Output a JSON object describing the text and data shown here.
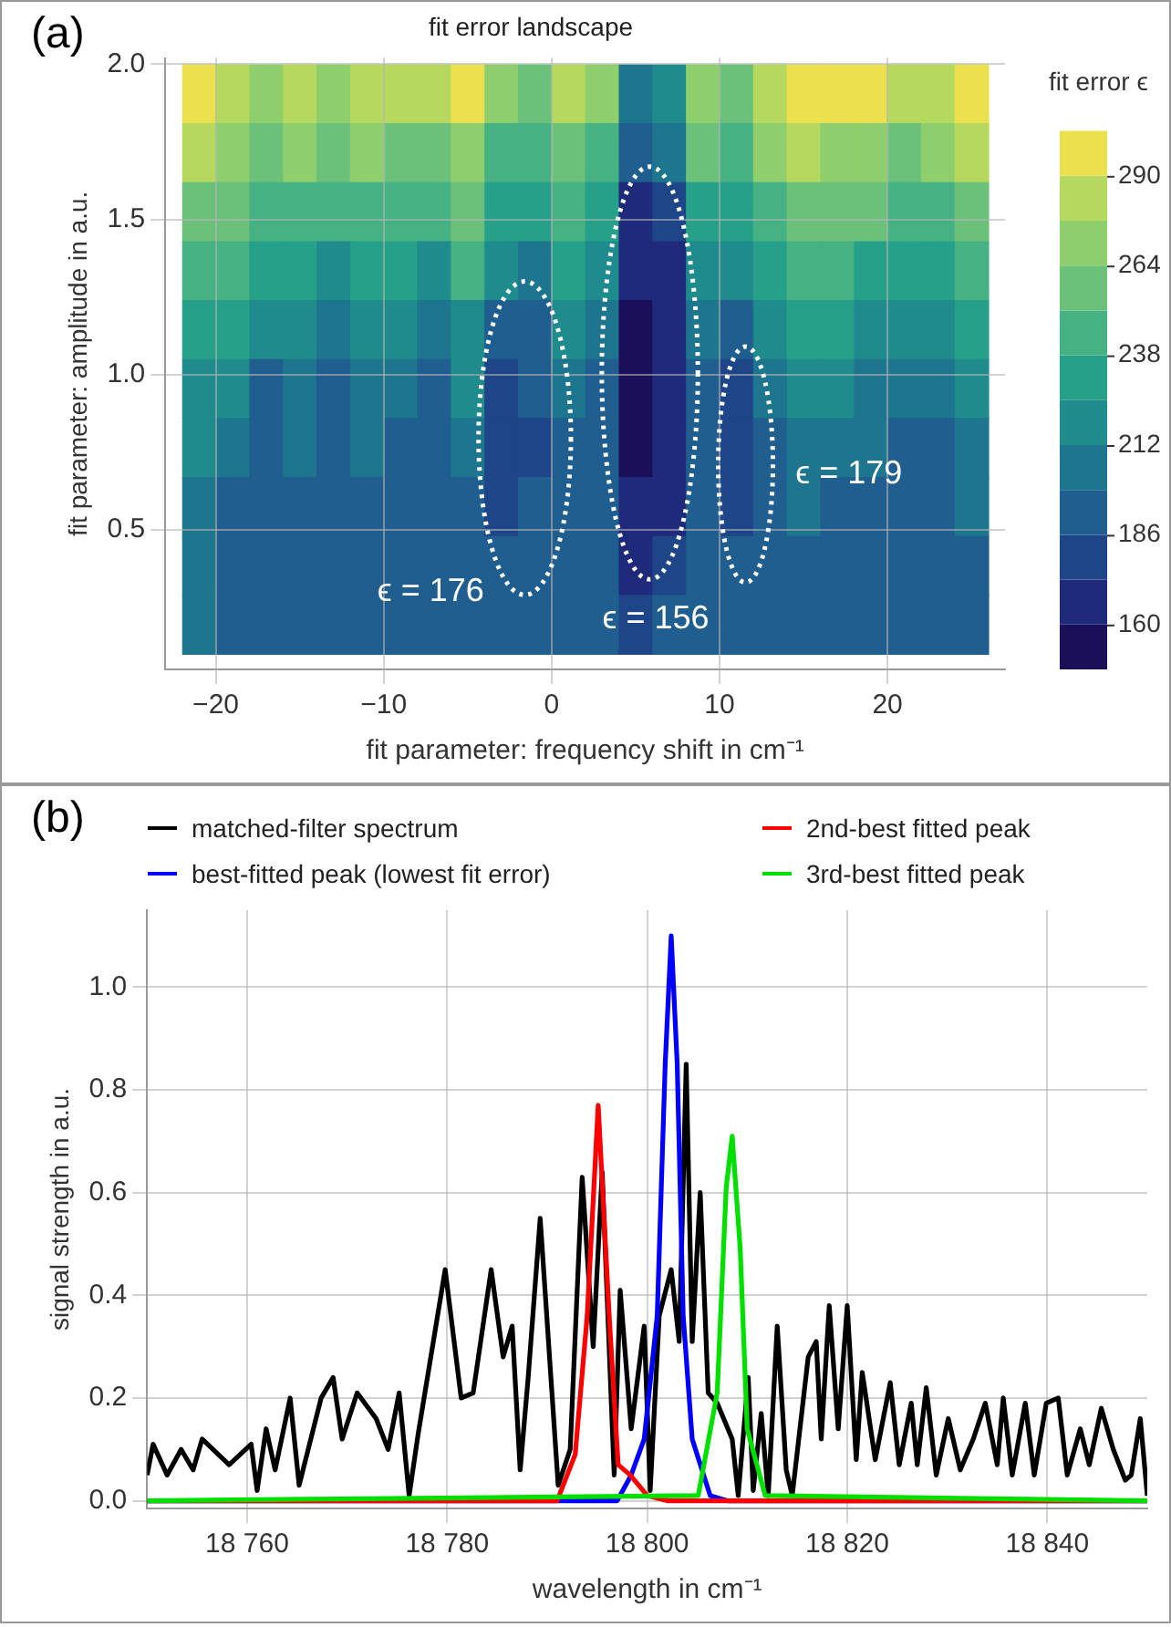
{
  "chart_data": [
    {
      "type": "heatmap",
      "title": "fit error landscape",
      "xlabel": "fit parameter: frequency shift in cm⁻¹",
      "ylabel": "fit parameter: amplitude in a.u.",
      "clabel": "fit error ϵ",
      "x": [
        -21,
        -19,
        -17,
        -15,
        -13,
        -11,
        -9,
        -7,
        -5,
        -3,
        -1,
        1,
        3,
        5,
        7,
        9,
        11,
        13,
        15,
        17,
        19,
        21,
        23,
        25
      ],
      "y": [
        1.905,
        1.715,
        1.525,
        1.335,
        1.145,
        0.955,
        0.765,
        0.575,
        0.385,
        0.195
      ],
      "xlim": [
        -23,
        27
      ],
      "ylim": [
        0.05,
        2.02
      ],
      "xticks": [
        {
          "value": -20,
          "label": "−20"
        },
        {
          "value": -10,
          "label": "−10"
        },
        0,
        10,
        20
      ],
      "yticks": [
        0.5,
        {
          "value": 1,
          "label": "1.0"
        },
        1.5,
        {
          "value": 2,
          "label": "2.0"
        }
      ],
      "clim": [
        147,
        303
      ],
      "cticks": [
        160,
        186,
        212,
        238,
        264,
        290
      ],
      "grid": true,
      "cells": [
        [
          295,
          285,
          275,
          280,
          275,
          282,
          280,
          278,
          292,
          270,
          262,
          280,
          270,
          200,
          215,
          270,
          262,
          282,
          295,
          292,
          290,
          282,
          285,
          295
        ],
        [
          278,
          270,
          258,
          265,
          258,
          266,
          262,
          255,
          272,
          250,
          245,
          262,
          250,
          190,
          200,
          252,
          245,
          265,
          278,
          275,
          270,
          262,
          266,
          278
        ],
        [
          262,
          255,
          240,
          250,
          240,
          250,
          245,
          238,
          255,
          230,
          226,
          245,
          232,
          172,
          185,
          235,
          228,
          248,
          262,
          258,
          252,
          246,
          250,
          262
        ],
        [
          248,
          240,
          226,
          236,
          224,
          236,
          230,
          222,
          238,
          214,
          210,
          230,
          218,
          160,
          172,
          220,
          212,
          232,
          246,
          242,
          236,
          230,
          234,
          246
        ],
        [
          234,
          226,
          212,
          222,
          210,
          222,
          216,
          208,
          224,
          190,
          196,
          216,
          206,
          154,
          165,
          206,
          198,
          218,
          232,
          228,
          222,
          216,
          220,
          232
        ],
        [
          222,
          214,
          198,
          210,
          198,
          210,
          203,
          198,
          212,
          182,
          190,
          204,
          196,
          154,
          165,
          196,
          182,
          206,
          220,
          216,
          210,
          204,
          208,
          220
        ],
        [
          212,
          205,
          190,
          200,
          190,
          200,
          194,
          190,
          202,
          178,
          184,
          196,
          190,
          155,
          168,
          190,
          180,
          198,
          210,
          206,
          200,
          194,
          198,
          210
        ],
        [
          205,
          198,
          190,
          195,
          190,
          194,
          190,
          188,
          196,
          180,
          186,
          192,
          188,
          160,
          172,
          188,
          182,
          194,
          202,
          198,
          192,
          188,
          190,
          204
        ],
        [
          202,
          195,
          188,
          192,
          188,
          192,
          188,
          190,
          194,
          186,
          188,
          190,
          188,
          172,
          180,
          188,
          186,
          190,
          196,
          190,
          186,
          186,
          186,
          198
        ],
        [
          200,
          193,
          188,
          192,
          190,
          192,
          190,
          192,
          194,
          190,
          190,
          192,
          190,
          184,
          186,
          190,
          190,
          192,
          194,
          190,
          188,
          188,
          188,
          196
        ]
      ],
      "annotations": [
        "(a)",
        "ϵ = 176",
        "ϵ = 156",
        "ϵ = 179"
      ]
    },
    {
      "type": "line",
      "xlabel": "wavelength in cm⁻¹",
      "ylabel": "signal strength in a.u.",
      "legend": "top",
      "grid": true,
      "marker": "none",
      "line_style": "solid",
      "xlim": [
        18750,
        18850
      ],
      "ylim": [
        -0.015,
        1.15
      ],
      "xticks": [
        {
          "value": 18760,
          "label": "18 760"
        },
        {
          "value": 18780,
          "label": "18 780"
        },
        {
          "value": 18800,
          "label": "18 800"
        },
        {
          "value": 18820,
          "label": "18 820"
        },
        {
          "value": 18840,
          "label": "18 840"
        }
      ],
      "yticks": [
        {
          "value": 0,
          "label": "0.0"
        },
        0.2,
        0.4,
        0.6,
        0.8,
        {
          "value": 1,
          "label": "1.0"
        }
      ],
      "annotations": [
        "(b)"
      ],
      "series": [
        {
          "name": "matched-filter spectrum",
          "color": "#000000",
          "x": [
            18750,
            18750.6,
            18752,
            18753.4,
            18754.6,
            18755.5,
            18758.2,
            18760.4,
            18761,
            18761.9,
            18762.8,
            18764.3,
            18765.2,
            18767.4,
            18768.6,
            18769.5,
            18771,
            18772.9,
            18774.1,
            18775.2,
            18776.2,
            18777.1,
            18779.8,
            18781.4,
            18782.6,
            18784.4,
            18785.6,
            18786.5,
            18787.3,
            18788.1,
            18789.3,
            18791.1,
            18792.3,
            18793.5,
            18794.6,
            18795.5,
            18796.7,
            18797.3,
            18798.4,
            18799.7,
            18800.3,
            18801.2,
            18802.4,
            18803.2,
            18803.9,
            18804.5,
            18805.3,
            18806.1,
            18807,
            18808.5,
            18809.1,
            18810.1,
            18810.6,
            18811.4,
            18812.1,
            18813,
            18813.9,
            18814.5,
            18816.1,
            18816.9,
            18817.4,
            18818.2,
            18819.1,
            18820,
            18820.9,
            18821.5,
            18822.8,
            18824.3,
            18825.2,
            18826.4,
            18827,
            18827.9,
            18828.9,
            18830.1,
            18831.3,
            18832.6,
            18833.8,
            18835,
            18835.6,
            18836.5,
            18837.8,
            18838.7,
            18839.9,
            18841.1,
            18842,
            18843.3,
            18844.2,
            18845.4,
            18846.6,
            18847.8,
            18848.4,
            18849.3,
            18850
          ],
          "values": [
            0.05,
            0.11,
            0.05,
            0.1,
            0.06,
            0.12,
            0.07,
            0.11,
            0.02,
            0.14,
            0.06,
            0.2,
            0.03,
            0.2,
            0.24,
            0.12,
            0.21,
            0.16,
            0.1,
            0.21,
            0.01,
            0.13,
            0.45,
            0.2,
            0.21,
            0.45,
            0.28,
            0.34,
            0.06,
            0.24,
            0.55,
            0.03,
            0.1,
            0.63,
            0.3,
            0.64,
            0.05,
            0.41,
            0.14,
            0.34,
            0.02,
            0.36,
            0.45,
            0.31,
            0.85,
            0.31,
            0.6,
            0.21,
            0.19,
            0.12,
            0.01,
            0.24,
            0.02,
            0.17,
            0.01,
            0.34,
            0.06,
            0.01,
            0.28,
            0.31,
            0.12,
            0.38,
            0.14,
            0.38,
            0.08,
            0.25,
            0.08,
            0.23,
            0.07,
            0.19,
            0.07,
            0.22,
            0.05,
            0.16,
            0.06,
            0.12,
            0.19,
            0.07,
            0.2,
            0.05,
            0.19,
            0.05,
            0.19,
            0.2,
            0.05,
            0.14,
            0.07,
            0.18,
            0.1,
            0.04,
            0.05,
            0.16,
            0.01
          ]
        },
        {
          "name": "best-fitted peak (lowest fit error)",
          "color": "#0000ff",
          "x": [
            18750,
            18797,
            18798.4,
            18799.7,
            18801,
            18801.8,
            18802.4,
            18803,
            18803.6,
            18804.5,
            18806.3,
            18808,
            18850
          ],
          "values": [
            0,
            0,
            0.05,
            0.12,
            0.36,
            0.85,
            1.1,
            0.85,
            0.36,
            0.12,
            0.01,
            0,
            0
          ]
        },
        {
          "name": "2nd-best fitted peak",
          "color": "#ff0000",
          "x": [
            18750,
            18791,
            18792.8,
            18794,
            18795.1,
            18796.2,
            18797.1,
            18798.3,
            18800,
            18802,
            18850
          ],
          "values": [
            0,
            0,
            0.09,
            0.36,
            0.77,
            0.36,
            0.07,
            0.05,
            0.01,
            0,
            0
          ]
        },
        {
          "name": "3rd-best fitted peak",
          "color": "#00e000",
          "x": [
            18750,
            18805.1,
            18807,
            18807.9,
            18808.5,
            18809.3,
            18810,
            18811.8,
            18850
          ],
          "values": [
            0,
            0.01,
            0.21,
            0.61,
            0.71,
            0.49,
            0.14,
            0.01,
            0
          ]
        }
      ]
    }
  ]
}
